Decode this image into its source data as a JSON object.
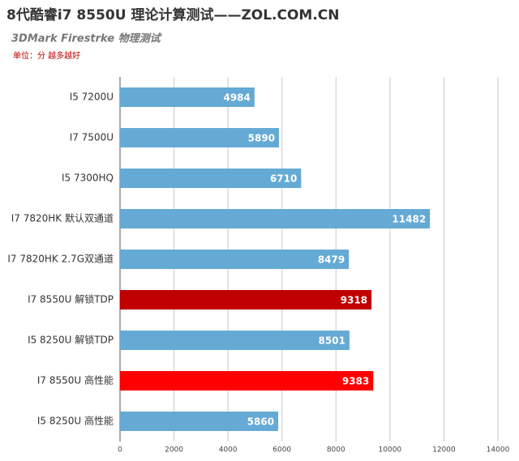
{
  "chart_data": {
    "type": "hbar",
    "title": "8代酷睿i7 8550U 理论计算测试——ZOL.COM.CN",
    "subtitle": "3DMark Firestrke 物理测试",
    "note": "单位：分 越多越好",
    "categories": [
      "I5 7200U",
      "I7 7500U",
      "I5 7300HQ",
      "I7 7820HK 默认双通道",
      "I7 7820HK 2.7G双通道",
      "I7 8550U 解锁TDP",
      "I5 8250U 解锁TDP",
      "I7 8550U 高性能",
      "I5 8250U 高性能"
    ],
    "values": [
      4984,
      5890,
      6710,
      11482,
      8479,
      9318,
      8501,
      9383,
      5860
    ],
    "colors": [
      "#65aad5",
      "#65aad5",
      "#65aad5",
      "#65aad5",
      "#65aad5",
      "#c00000",
      "#65aad5",
      "#ff0000",
      "#65aad5"
    ],
    "xlim": [
      0,
      14000
    ],
    "xticks": [
      0,
      2000,
      4000,
      6000,
      8000,
      10000,
      12000,
      14000
    ],
    "grid": true
  }
}
